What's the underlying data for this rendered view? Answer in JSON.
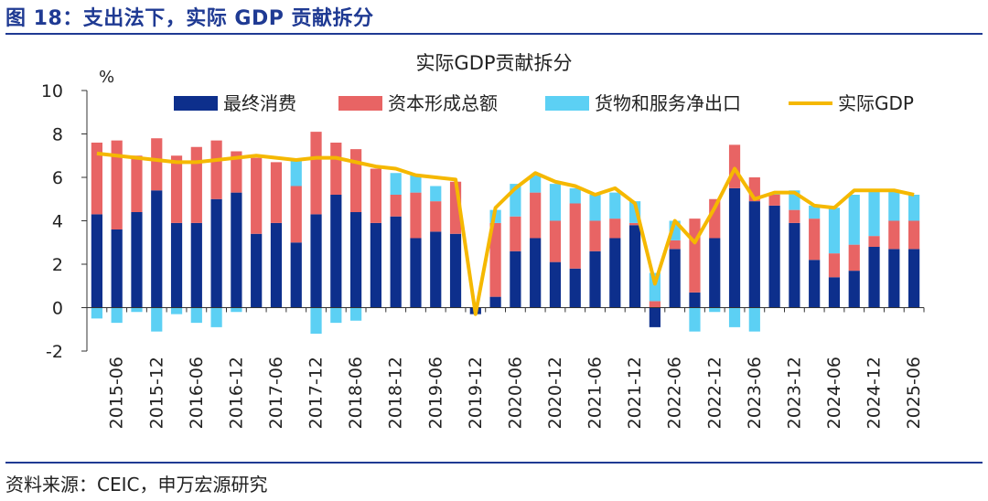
{
  "figure_title": "图 18：支出法下，实际 GDP 贡献拆分",
  "source_note": "资料来源：CEIC，申万宏源研究",
  "colors": {
    "consumption": "#0d2f8c",
    "capital": "#e86464",
    "netexport": "#5cd0f4",
    "gdp": "#f5b800",
    "axis": "#333333",
    "title_blue": "#1f3a93"
  },
  "chart_data": {
    "type": "bar",
    "title": "实际GDP贡献拆分",
    "ylabel": "%",
    "ylim": [
      -2,
      10
    ],
    "yticks": [
      -2,
      0,
      2,
      4,
      6,
      8,
      10
    ],
    "legend_position": "top",
    "x": [
      "2015-03",
      "2015-06",
      "2015-09",
      "2015-12",
      "2016-03",
      "2016-06",
      "2016-09",
      "2016-12",
      "2017-03",
      "2017-06",
      "2017-09",
      "2017-12",
      "2018-03",
      "2018-06",
      "2018-09",
      "2018-12",
      "2019-03",
      "2019-06",
      "2019-09",
      "2019-12",
      "2020-03",
      "2020-06",
      "2020-09",
      "2020-12",
      "2021-03",
      "2021-06",
      "2021-09",
      "2021-12",
      "2022-03",
      "2022-06",
      "2022-09",
      "2022-12",
      "2023-03",
      "2023-06",
      "2023-09",
      "2023-12",
      "2024-03",
      "2024-06",
      "2024-09",
      "2024-12",
      "2025-03",
      "2025-06"
    ],
    "tick_labels": [
      "2015-06",
      "2015-12",
      "2016-06",
      "2016-12",
      "2017-06",
      "2017-12",
      "2018-06",
      "2018-12",
      "2019-06",
      "2019-12",
      "2020-06",
      "2020-12",
      "2021-06",
      "2021-12",
      "2022-06",
      "2022-12",
      "2023-06",
      "2023-12",
      "2024-06",
      "2024-12",
      "2025-06"
    ],
    "series": [
      {
        "name": "最终消费",
        "type": "bar",
        "color_key": "consumption",
        "values": [
          4.3,
          3.6,
          4.4,
          5.4,
          3.9,
          3.9,
          5.0,
          5.3,
          3.4,
          3.9,
          3.0,
          4.3,
          5.2,
          4.4,
          3.9,
          4.2,
          3.2,
          3.5,
          3.4,
          -0.3,
          0.5,
          2.6,
          3.2,
          2.1,
          1.8,
          2.6,
          3.2,
          3.8,
          -0.9,
          2.7,
          0.7,
          3.2,
          5.5,
          4.9,
          4.7,
          3.9,
          2.2,
          1.4,
          1.7,
          2.8,
          2.7,
          2.7
        ]
      },
      {
        "name": "资本形成总额",
        "type": "bar",
        "color_key": "capital",
        "values": [
          3.3,
          4.1,
          2.6,
          2.4,
          3.1,
          3.5,
          2.7,
          1.9,
          3.5,
          2.8,
          2.6,
          3.8,
          2.4,
          2.9,
          2.5,
          1.0,
          2.1,
          1.4,
          2.4,
          0.0,
          3.4,
          1.6,
          2.1,
          1.9,
          3.0,
          1.4,
          0.9,
          0.1,
          0.3,
          0.4,
          3.4,
          1.8,
          2.0,
          1.1,
          0.5,
          0.6,
          1.9,
          1.1,
          1.2,
          0.5,
          1.3,
          1.3
        ]
      },
      {
        "name": "货物和服务净出口",
        "type": "bar",
        "color_key": "netexport",
        "values": [
          -0.5,
          -0.7,
          -0.2,
          -1.1,
          -0.3,
          -0.7,
          -0.9,
          -0.2,
          0.0,
          0.0,
          1.2,
          -1.2,
          -0.7,
          -0.6,
          0.0,
          1.0,
          0.8,
          0.7,
          0.0,
          0.0,
          0.6,
          1.5,
          0.8,
          1.7,
          0.7,
          1.2,
          1.2,
          1.0,
          1.3,
          0.9,
          -1.1,
          -0.2,
          -0.9,
          -1.1,
          0.1,
          0.9,
          0.6,
          2.1,
          2.3,
          2.1,
          1.4,
          1.2
        ]
      },
      {
        "name": "实际GDP",
        "type": "line",
        "color_key": "gdp",
        "values": [
          7.1,
          7.0,
          6.9,
          6.8,
          6.7,
          6.7,
          6.8,
          6.9,
          7.0,
          6.9,
          6.8,
          6.9,
          6.9,
          6.7,
          6.5,
          6.4,
          6.1,
          6.0,
          5.9,
          -0.3,
          4.6,
          5.5,
          6.2,
          5.8,
          5.6,
          5.2,
          5.5,
          4.8,
          1.1,
          4.0,
          3.0,
          4.6,
          6.4,
          5.0,
          5.3,
          5.3,
          4.7,
          4.6,
          5.4,
          5.4,
          5.4,
          5.2
        ]
      }
    ]
  }
}
